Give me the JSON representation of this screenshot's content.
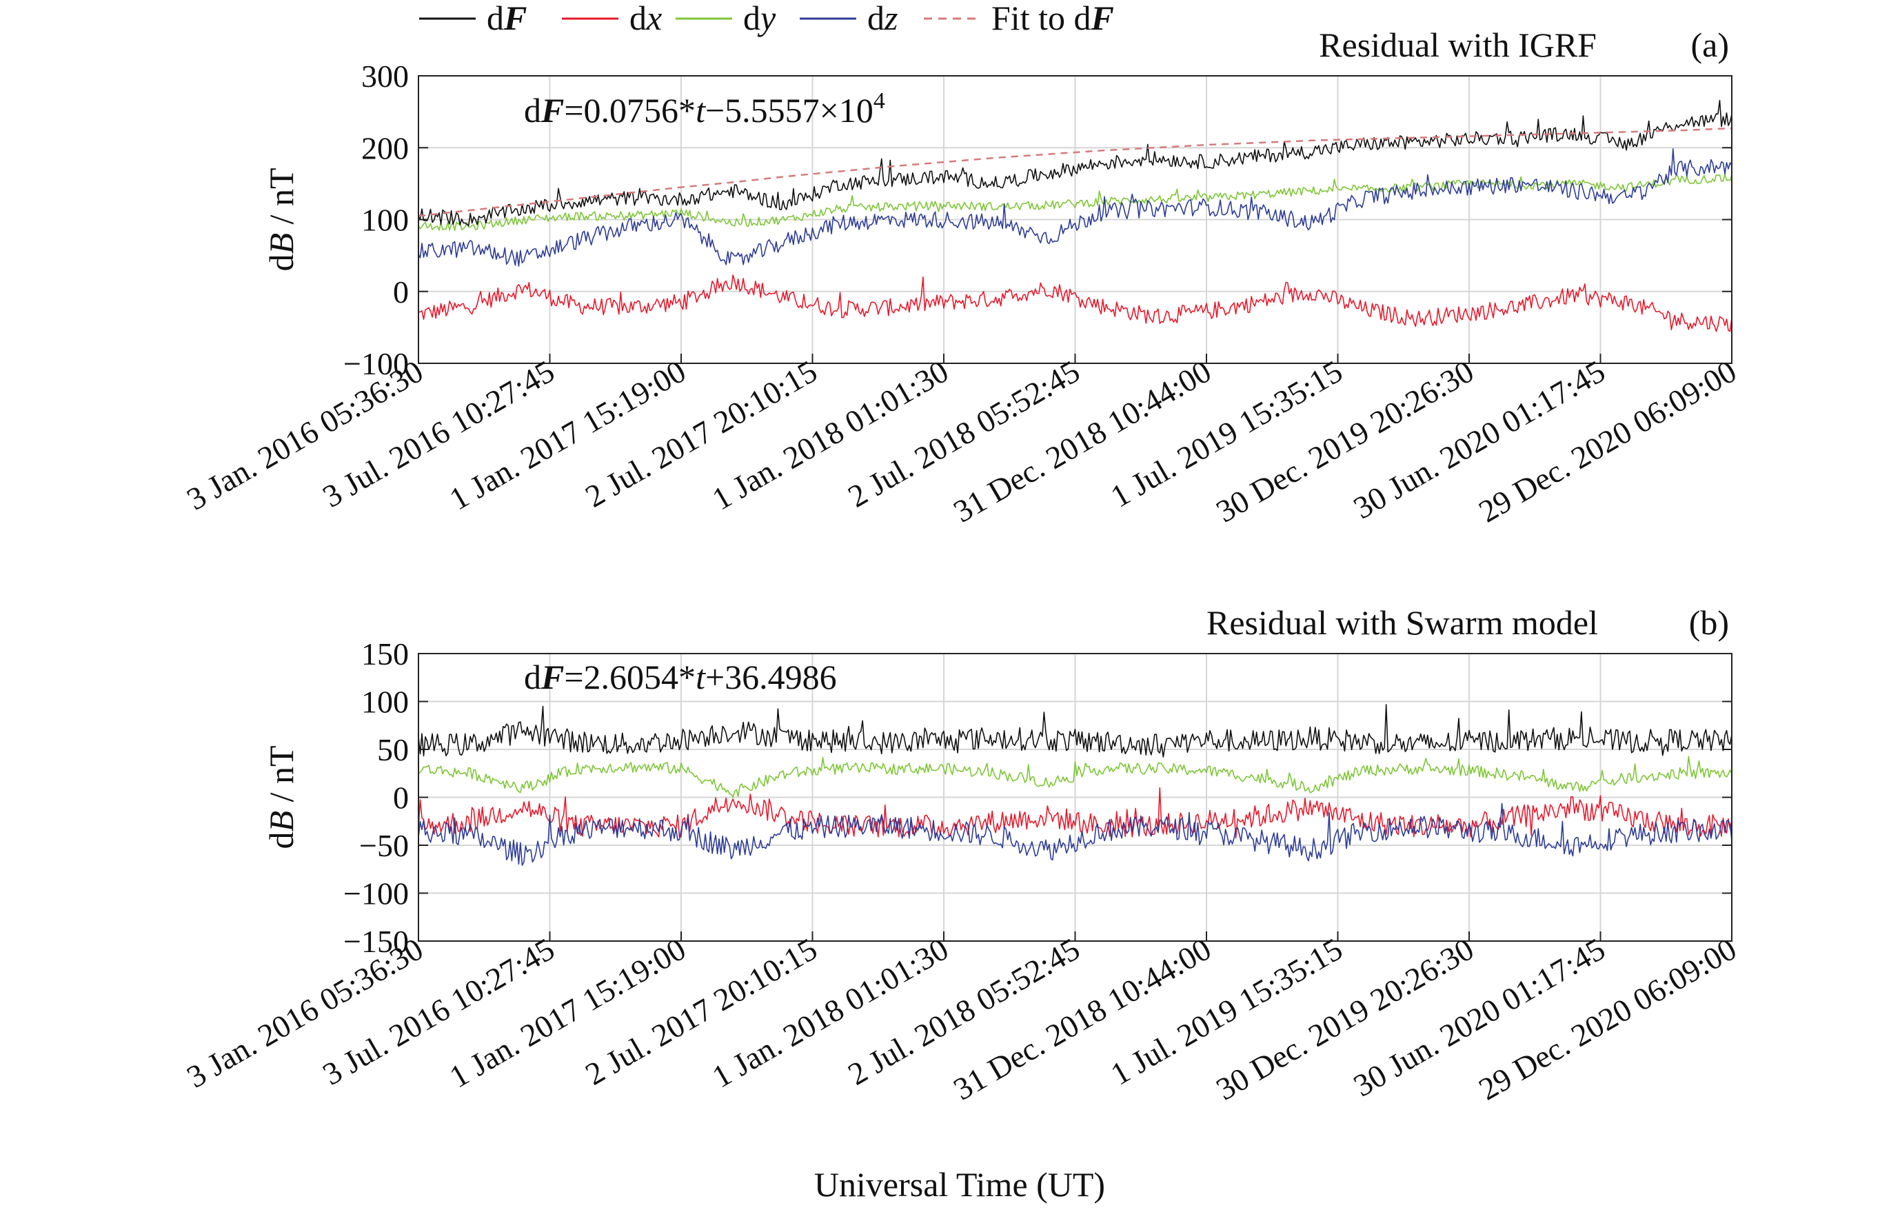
{
  "legend": {
    "items": [
      {
        "label_pre": "d",
        "label_var": "F",
        "style": "bold",
        "color": "#111111",
        "dash": false
      },
      {
        "label_pre": "d",
        "label_var": "x",
        "style": "italic",
        "color": "#e8192c",
        "dash": false
      },
      {
        "label_pre": "d",
        "label_var": "y",
        "style": "italic",
        "color": "#7ec636",
        "dash": false
      },
      {
        "label_pre": "d",
        "label_var": "z",
        "style": "italic",
        "color": "#2e3d96",
        "dash": false
      },
      {
        "label_pre": "Fit to d",
        "label_var": "F",
        "style": "bold",
        "color": "#d77a7a",
        "dash": true
      }
    ]
  },
  "xlabel": "Universal Time (UT)",
  "chart_data": [
    {
      "type": "line",
      "panel_id": "(a)",
      "title": "Residual with IGRF",
      "ylabel_pre": "d",
      "ylabel_var": "B",
      "ylabel_post": " / nT",
      "ylim": [
        -100,
        300
      ],
      "yticks": [
        -100,
        0,
        100,
        200,
        300
      ],
      "equation": {
        "pre": "d",
        "var": "F",
        "mid": "=0.0756*",
        "tvar": "t",
        "post": "−5.5557×10",
        "sup": "4"
      },
      "x_ticks": [
        "3 Jan. 2016 05:36:30",
        "3 Jul. 2016 10:27:45",
        "1 Jan. 2017 15:19:00",
        "2 Jul. 2017 20:10:15",
        "1 Jan. 2018 01:01:30",
        "2 Jul. 2018 05:52:45",
        "31 Dec. 2018 10:44:00",
        "1 Jul. 2019 15:35:15",
        "30 Dec. 2019 20:26:30",
        "30 Jun. 2020 01:17:45",
        "29 Dec. 2020 06:09:00"
      ],
      "grid": true,
      "series": [
        {
          "name": "dF",
          "color": "#111111",
          "values": [
            108,
            100,
            115,
            125,
            130,
            128,
            140,
            120,
            150,
            155,
            160,
            150,
            165,
            178,
            185,
            180,
            188,
            195,
            205,
            208,
            212,
            215,
            220,
            205,
            235,
            240
          ]
        },
        {
          "name": "dx",
          "color": "#e8192c",
          "values": [
            -32,
            -20,
            5,
            -20,
            -22,
            -15,
            15,
            -10,
            -25,
            -22,
            -15,
            -10,
            5,
            -20,
            -35,
            -28,
            -15,
            0,
            -25,
            -38,
            -30,
            -20,
            -5,
            -15,
            -40,
            -45
          ]
        },
        {
          "name": "dy",
          "color": "#7ec636",
          "values": [
            92,
            90,
            100,
            105,
            105,
            110,
            95,
            100,
            115,
            118,
            120,
            118,
            120,
            125,
            128,
            130,
            135,
            140,
            142,
            145,
            150,
            148,
            150,
            145,
            155,
            158
          ]
        },
        {
          "name": "dz",
          "color": "#2e3d96",
          "values": [
            55,
            60,
            45,
            70,
            90,
            100,
            40,
            70,
            95,
            100,
            100,
            95,
            75,
            110,
            115,
            118,
            110,
            95,
            130,
            140,
            145,
            150,
            140,
            130,
            170,
            175
          ]
        },
        {
          "name": "Fit to dF",
          "color": "#d77a7a",
          "dash": true,
          "values": [
            105,
            113,
            121,
            129,
            137,
            145,
            152,
            160,
            167,
            174,
            180,
            186,
            191,
            196,
            200,
            204,
            207,
            210,
            212,
            214,
            216,
            218,
            220,
            222,
            224,
            227
          ]
        }
      ]
    },
    {
      "type": "line",
      "panel_id": "(b)",
      "title": "Residual with Swarm model",
      "ylabel_pre": "d",
      "ylabel_var": "B",
      "ylabel_post": " / nT",
      "ylim": [
        -150,
        150
      ],
      "yticks": [
        -150,
        -100,
        -50,
        0,
        50,
        100,
        150
      ],
      "equation": {
        "pre": "d",
        "var": "F",
        "mid": "=2.6054*",
        "tvar": "t",
        "post": "+36.4986",
        "sup": ""
      },
      "x_ticks": [
        "3 Jan. 2016 05:36:30",
        "3 Jul. 2016 10:27:45",
        "1 Jan. 2017 15:19:00",
        "2 Jul. 2017 20:10:15",
        "1 Jan. 2018 01:01:30",
        "2 Jul. 2018 05:52:45",
        "31 Dec. 2018 10:44:00",
        "1 Jul. 2019 15:35:15",
        "30 Dec. 2019 20:26:30",
        "30 Jun. 2020 01:17:45",
        "29 Dec. 2020 06:09:00"
      ],
      "grid": true,
      "series": [
        {
          "name": "dF",
          "color": "#111111",
          "values": [
            55,
            55,
            70,
            58,
            55,
            60,
            70,
            62,
            58,
            57,
            60,
            62,
            60,
            58,
            55,
            60,
            58,
            62,
            58,
            55,
            58,
            60,
            62,
            58,
            60,
            58
          ]
        },
        {
          "name": "dx",
          "color": "#e8192c",
          "values": [
            -30,
            -25,
            -10,
            -30,
            -30,
            -30,
            0,
            -20,
            -30,
            -30,
            -30,
            -25,
            -20,
            -30,
            -30,
            -25,
            -20,
            -10,
            -25,
            -30,
            -30,
            -20,
            -10,
            -20,
            -30,
            -30
          ]
        },
        {
          "name": "dy",
          "color": "#7ec636",
          "values": [
            30,
            25,
            10,
            30,
            32,
            30,
            5,
            25,
            30,
            30,
            30,
            25,
            15,
            30,
            30,
            28,
            20,
            10,
            28,
            30,
            28,
            22,
            10,
            20,
            25,
            25
          ]
        },
        {
          "name": "dz",
          "color": "#2e3d96",
          "values": [
            -35,
            -40,
            -60,
            -35,
            -30,
            -35,
            -55,
            -35,
            -30,
            -30,
            -35,
            -40,
            -55,
            -35,
            -30,
            -35,
            -45,
            -55,
            -35,
            -30,
            -35,
            -40,
            -50,
            -40,
            -35,
            -35
          ]
        }
      ]
    }
  ]
}
